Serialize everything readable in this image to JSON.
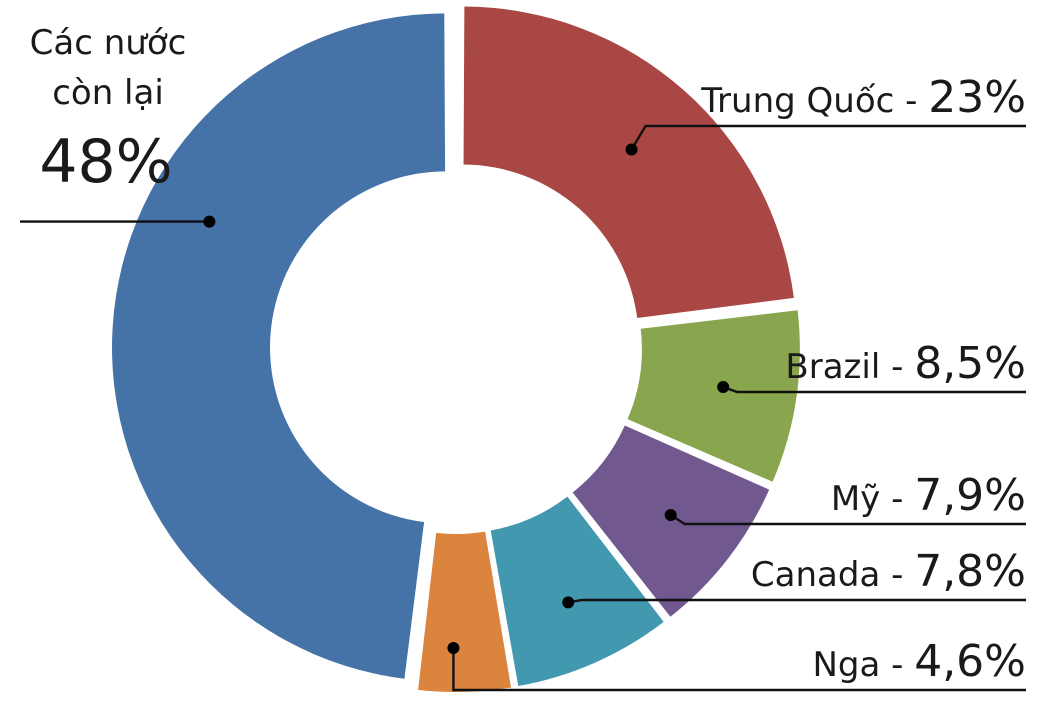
{
  "chart_data": {
    "type": "pie",
    "donut": true,
    "categories": [
      "Trung Quốc",
      "Brazil",
      "Mỹ",
      "Canada",
      "Nga",
      "Các nước còn lại"
    ],
    "values": [
      23,
      8.5,
      7.9,
      7.8,
      4.6,
      48
    ],
    "value_labels": [
      "23%",
      "8,5%",
      "7,9%",
      "7,8%",
      "4,6%",
      "48%"
    ],
    "colors": [
      "#a94744",
      "#89a54e",
      "#71588f",
      "#4198af",
      "#db843d",
      "#4572a7"
    ],
    "big_label_lines": [
      "Các nước",
      "còn lại"
    ],
    "legend": "none",
    "title": ""
  }
}
